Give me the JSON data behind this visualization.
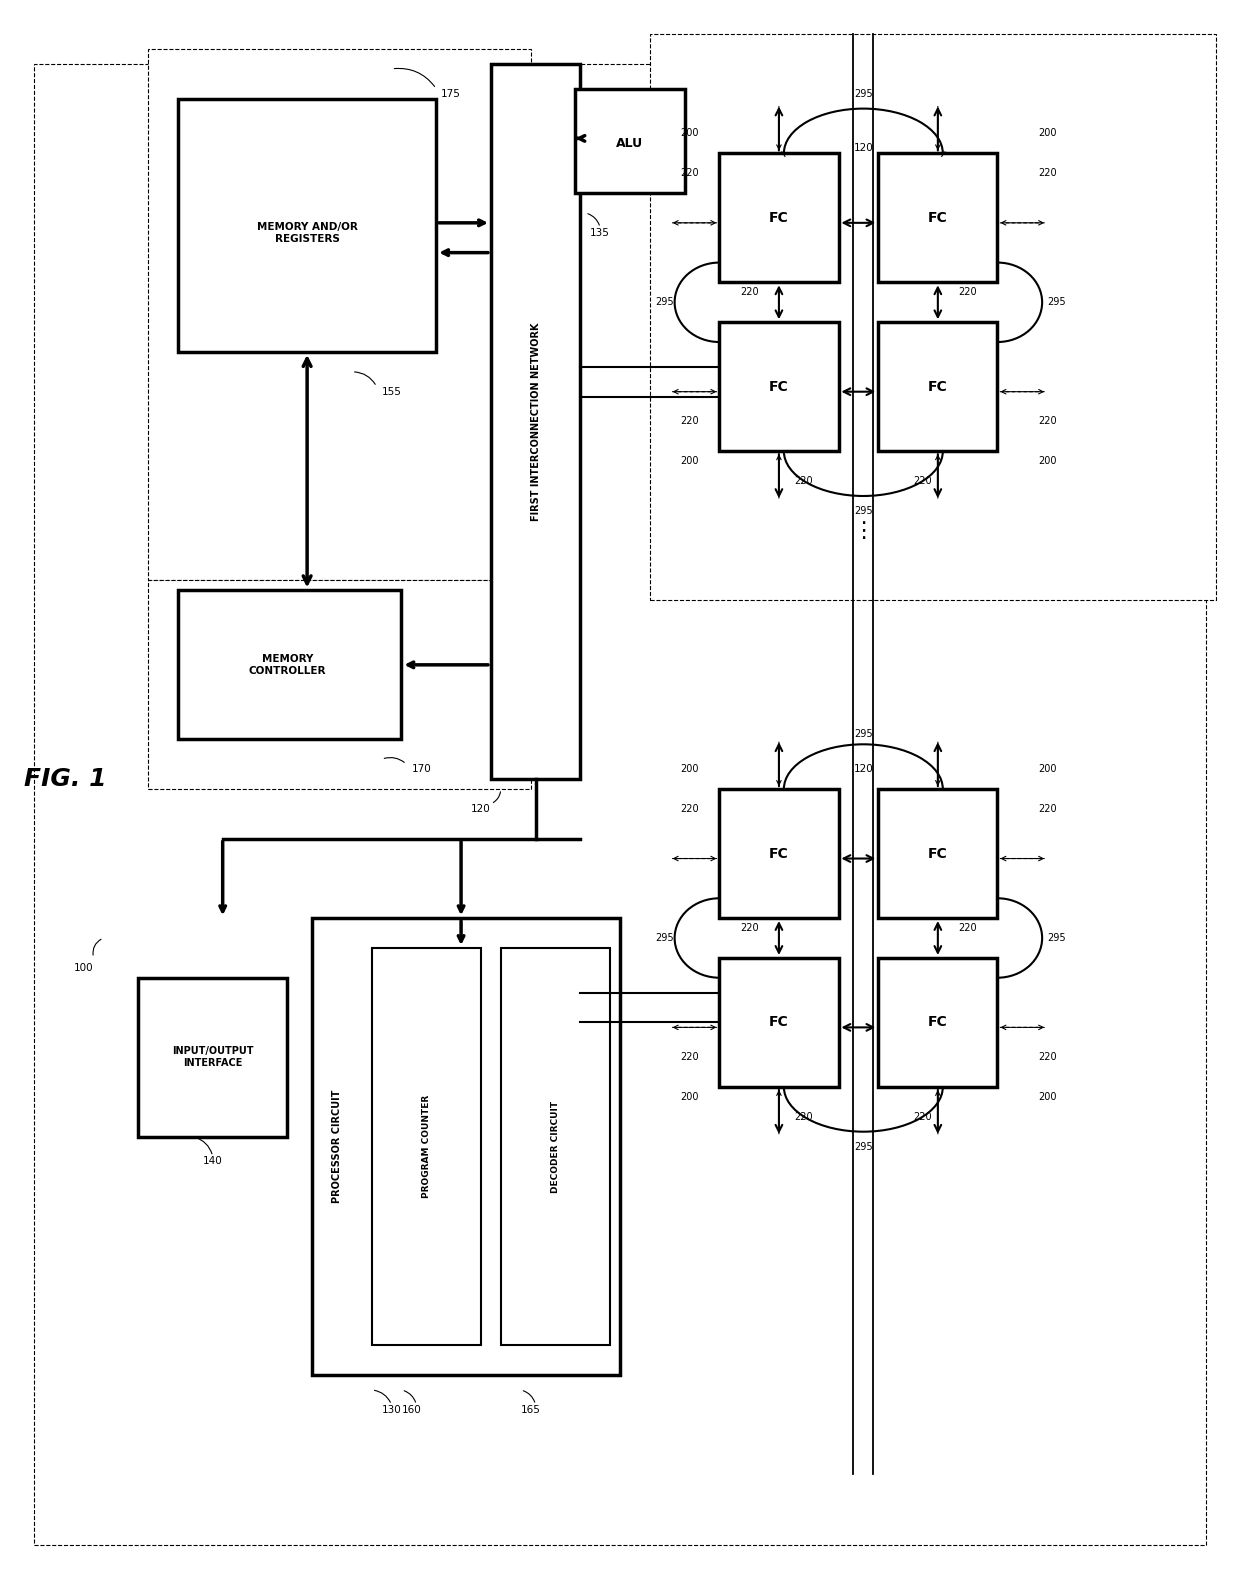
{
  "fig_width": 12.4,
  "fig_height": 15.79,
  "bg": "#ffffff",
  "labels": {
    "fig1": "FIG. 1",
    "ref100": "100",
    "ref175": "175",
    "mem_reg": "MEMORY AND/OR\nREGISTERS",
    "ref155": "155",
    "mem_ctrl": "MEMORY\nCONTROLLER",
    "ref170": "170",
    "first_net": "FIRST INTERCONNECTION NETWORK",
    "ref120": "120",
    "alu": "ALU",
    "ref135": "135",
    "io": "INPUT/OUTPUT\nINTERFACE",
    "ref140": "140",
    "proc": "PROCESSOR CIRCUIT",
    "ref130": "130",
    "prog": "PROGRAM COUNTER",
    "ref160": "160",
    "dec": "DECODER CIRCUIT",
    "ref165": "165",
    "fc": "FC",
    "n200": "200",
    "n220": "220",
    "n295": "295"
  }
}
